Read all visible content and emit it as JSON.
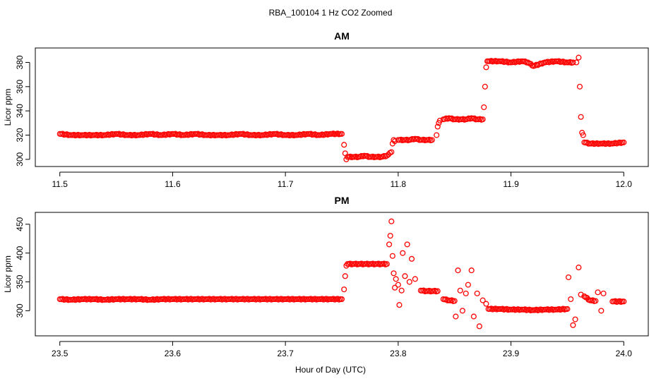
{
  "figure": {
    "title": "RBA_100104  1 Hz CO2 Zoomed",
    "xlabel": "Hour of Day (UTC)"
  },
  "chart_data": [
    {
      "type": "scatter",
      "title": "AM",
      "xlabel": "Hour of Day (UTC)",
      "ylabel": "Licor ppm",
      "xlim": [
        11.5,
        12.0
      ],
      "ylim": [
        298,
        388
      ],
      "xticks": [
        11.5,
        11.6,
        11.7,
        11.8,
        11.9,
        12.0
      ],
      "xtick_labels": [
        "11.5",
        "11.6",
        "11.7",
        "11.8",
        "11.9",
        "12.0"
      ],
      "yticks": [
        300,
        320,
        340,
        360,
        380
      ],
      "ytick_labels": [
        "300",
        "320",
        "340",
        "360",
        "380"
      ],
      "marker_color": "#ff0000",
      "grid": false,
      "series": [
        {
          "x": [
            11.5,
            11.51,
            11.52,
            11.53,
            11.54,
            11.55,
            11.56,
            11.57,
            11.58,
            11.59,
            11.6,
            11.61,
            11.62,
            11.63,
            11.64,
            11.65,
            11.66,
            11.67,
            11.68,
            11.69,
            11.7,
            11.71,
            11.72,
            11.73,
            11.74,
            11.75,
            11.752,
            11.753,
            11.754,
            11.755,
            11.76,
            11.765,
            11.77,
            11.775,
            11.78,
            11.785,
            11.79,
            11.794,
            11.795,
            11.796,
            11.797,
            11.8,
            11.805,
            11.81,
            11.815,
            11.82,
            11.825,
            11.83,
            11.834,
            11.835,
            11.836,
            11.837,
            11.84,
            11.845,
            11.85,
            11.855,
            11.86,
            11.865,
            11.87,
            11.875,
            11.876,
            11.877,
            11.878,
            11.879,
            11.88,
            11.89,
            11.9,
            11.91,
            11.915,
            11.92,
            11.93,
            11.94,
            11.95,
            11.955,
            11.958,
            11.96,
            11.961,
            11.962,
            11.963,
            11.964,
            11.965,
            11.97,
            11.98,
            11.99,
            12.0
          ],
          "y": [
            321,
            320,
            320,
            320,
            320,
            321,
            320,
            320,
            321,
            320,
            321,
            320,
            321,
            320,
            320,
            320,
            321,
            320,
            320,
            321,
            320,
            320,
            321,
            320,
            321,
            321,
            312,
            305,
            300,
            302,
            302,
            302,
            303,
            302,
            302,
            302,
            303,
            306,
            313,
            316,
            315,
            316,
            316,
            316,
            317,
            316,
            316,
            316,
            320,
            327,
            330,
            332,
            333,
            334,
            333,
            333,
            333,
            334,
            333,
            333,
            343,
            360,
            376,
            381,
            381,
            381,
            380,
            381,
            380,
            377,
            380,
            381,
            380,
            380,
            380,
            384,
            360,
            335,
            322,
            320,
            314,
            313,
            313,
            313,
            314
          ]
        }
      ]
    },
    {
      "type": "scatter",
      "title": "PM",
      "xlabel": "Hour of Day (UTC)",
      "ylabel": "Licor ppm",
      "xlim": [
        23.5,
        24.0
      ],
      "ylim": [
        265,
        462
      ],
      "xticks": [
        23.5,
        23.6,
        23.7,
        23.8,
        23.9,
        24.0
      ],
      "xtick_labels": [
        "23.5",
        "23.6",
        "23.7",
        "23.8",
        "23.9",
        "24.0"
      ],
      "yticks": [
        300,
        350,
        400,
        450
      ],
      "ytick_labels": [
        "300",
        "350",
        "400",
        "450"
      ],
      "marker_color": "#ff0000",
      "grid": false,
      "series": [
        {
          "x": [
            23.5,
            23.51,
            23.52,
            23.53,
            23.54,
            23.55,
            23.56,
            23.57,
            23.58,
            23.59,
            23.6,
            23.61,
            23.62,
            23.63,
            23.64,
            23.65,
            23.66,
            23.67,
            23.68,
            23.69,
            23.7,
            23.71,
            23.72,
            23.73,
            23.74,
            23.75,
            23.752,
            23.753,
            23.754,
            23.755,
            23.76,
            23.765,
            23.77,
            23.775,
            23.78,
            23.785,
            23.79,
            23.792,
            23.793,
            23.794,
            23.795,
            23.796,
            23.797,
            23.798,
            23.8,
            23.801,
            23.803,
            23.804,
            23.806,
            23.808,
            23.81,
            23.812,
            23.815,
            23.82,
            23.825,
            23.83,
            23.835,
            23.84,
            23.845,
            23.85,
            23.851,
            23.853,
            23.855,
            23.857,
            23.86,
            23.862,
            23.865,
            23.867,
            23.87,
            23.872,
            23.875,
            23.878,
            23.88,
            23.89,
            23.9,
            23.91,
            23.92,
            23.93,
            23.94,
            23.95,
            23.951,
            23.953,
            23.955,
            23.957,
            23.96,
            23.962,
            23.965,
            23.97,
            23.975,
            23.977,
            23.98,
            23.982,
            23.99,
            24.0
          ],
          "y": [
            320,
            319,
            320,
            320,
            319,
            320,
            320,
            320,
            319,
            320,
            320,
            320,
            320,
            320,
            320,
            320,
            320,
            320,
            320,
            320,
            320,
            320,
            320,
            320,
            320,
            320,
            337,
            360,
            378,
            381,
            381,
            381,
            381,
            381,
            381,
            381,
            381,
            415,
            430,
            455,
            395,
            365,
            340,
            355,
            345,
            310,
            335,
            400,
            360,
            415,
            350,
            390,
            355,
            335,
            334,
            334,
            334,
            320,
            318,
            317,
            290,
            370,
            335,
            300,
            330,
            345,
            370,
            290,
            330,
            273,
            318,
            312,
            303,
            303,
            302,
            302,
            301,
            302,
            302,
            303,
            358,
            320,
            275,
            285,
            375,
            328,
            325,
            318,
            317,
            332,
            300,
            330,
            316,
            316
          ]
        }
      ]
    }
  ]
}
